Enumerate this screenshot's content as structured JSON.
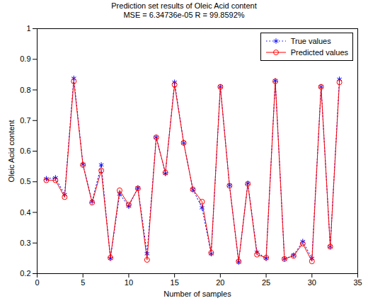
{
  "chart_data": {
    "type": "line",
    "title": "Prediction set results of Oleic Acid content",
    "subtitle": "MSE = 6.34736e-05 R = 99.8592%",
    "x_label": "Number of samples",
    "y_label": "Oleic Acid content",
    "x": [
      1,
      2,
      3,
      4,
      5,
      6,
      7,
      8,
      9,
      10,
      11,
      12,
      13,
      14,
      15,
      16,
      17,
      18,
      19,
      20,
      21,
      22,
      23,
      24,
      25,
      26,
      27,
      28,
      29,
      30,
      31,
      32,
      33
    ],
    "series": [
      {
        "name": "True values",
        "color": "#0000ff",
        "marker": "asterisk",
        "line_style": "dotted",
        "values": [
          0.51,
          0.513,
          0.458,
          0.838,
          0.557,
          0.435,
          0.555,
          0.25,
          0.46,
          0.42,
          0.48,
          0.265,
          0.645,
          0.527,
          0.825,
          0.627,
          0.475,
          0.415,
          0.265,
          0.81,
          0.488,
          0.238,
          0.495,
          0.27,
          0.25,
          0.83,
          0.248,
          0.26,
          0.305,
          0.25,
          0.81,
          0.288,
          0.835
        ]
      },
      {
        "name": "Predicted values",
        "color": "#ff0000",
        "marker": "circle",
        "line_style": "solid",
        "values": [
          0.505,
          0.505,
          0.45,
          0.828,
          0.555,
          0.432,
          0.537,
          0.252,
          0.472,
          0.425,
          0.478,
          0.245,
          0.645,
          0.53,
          0.817,
          0.627,
          0.475,
          0.435,
          0.268,
          0.81,
          0.487,
          0.24,
          0.493,
          0.262,
          0.252,
          0.828,
          0.248,
          0.258,
          0.298,
          0.24,
          0.81,
          0.288,
          0.825
        ]
      }
    ],
    "xlim": [
      0,
      35
    ],
    "xticks": [
      0,
      5,
      10,
      15,
      20,
      25,
      30,
      35
    ],
    "ylim": [
      0.2,
      1
    ],
    "yticks": [
      0.2,
      0.3,
      0.4,
      0.5,
      0.6,
      0.7,
      0.8,
      0.9,
      1
    ],
    "grid": false,
    "legend": "top-right"
  }
}
